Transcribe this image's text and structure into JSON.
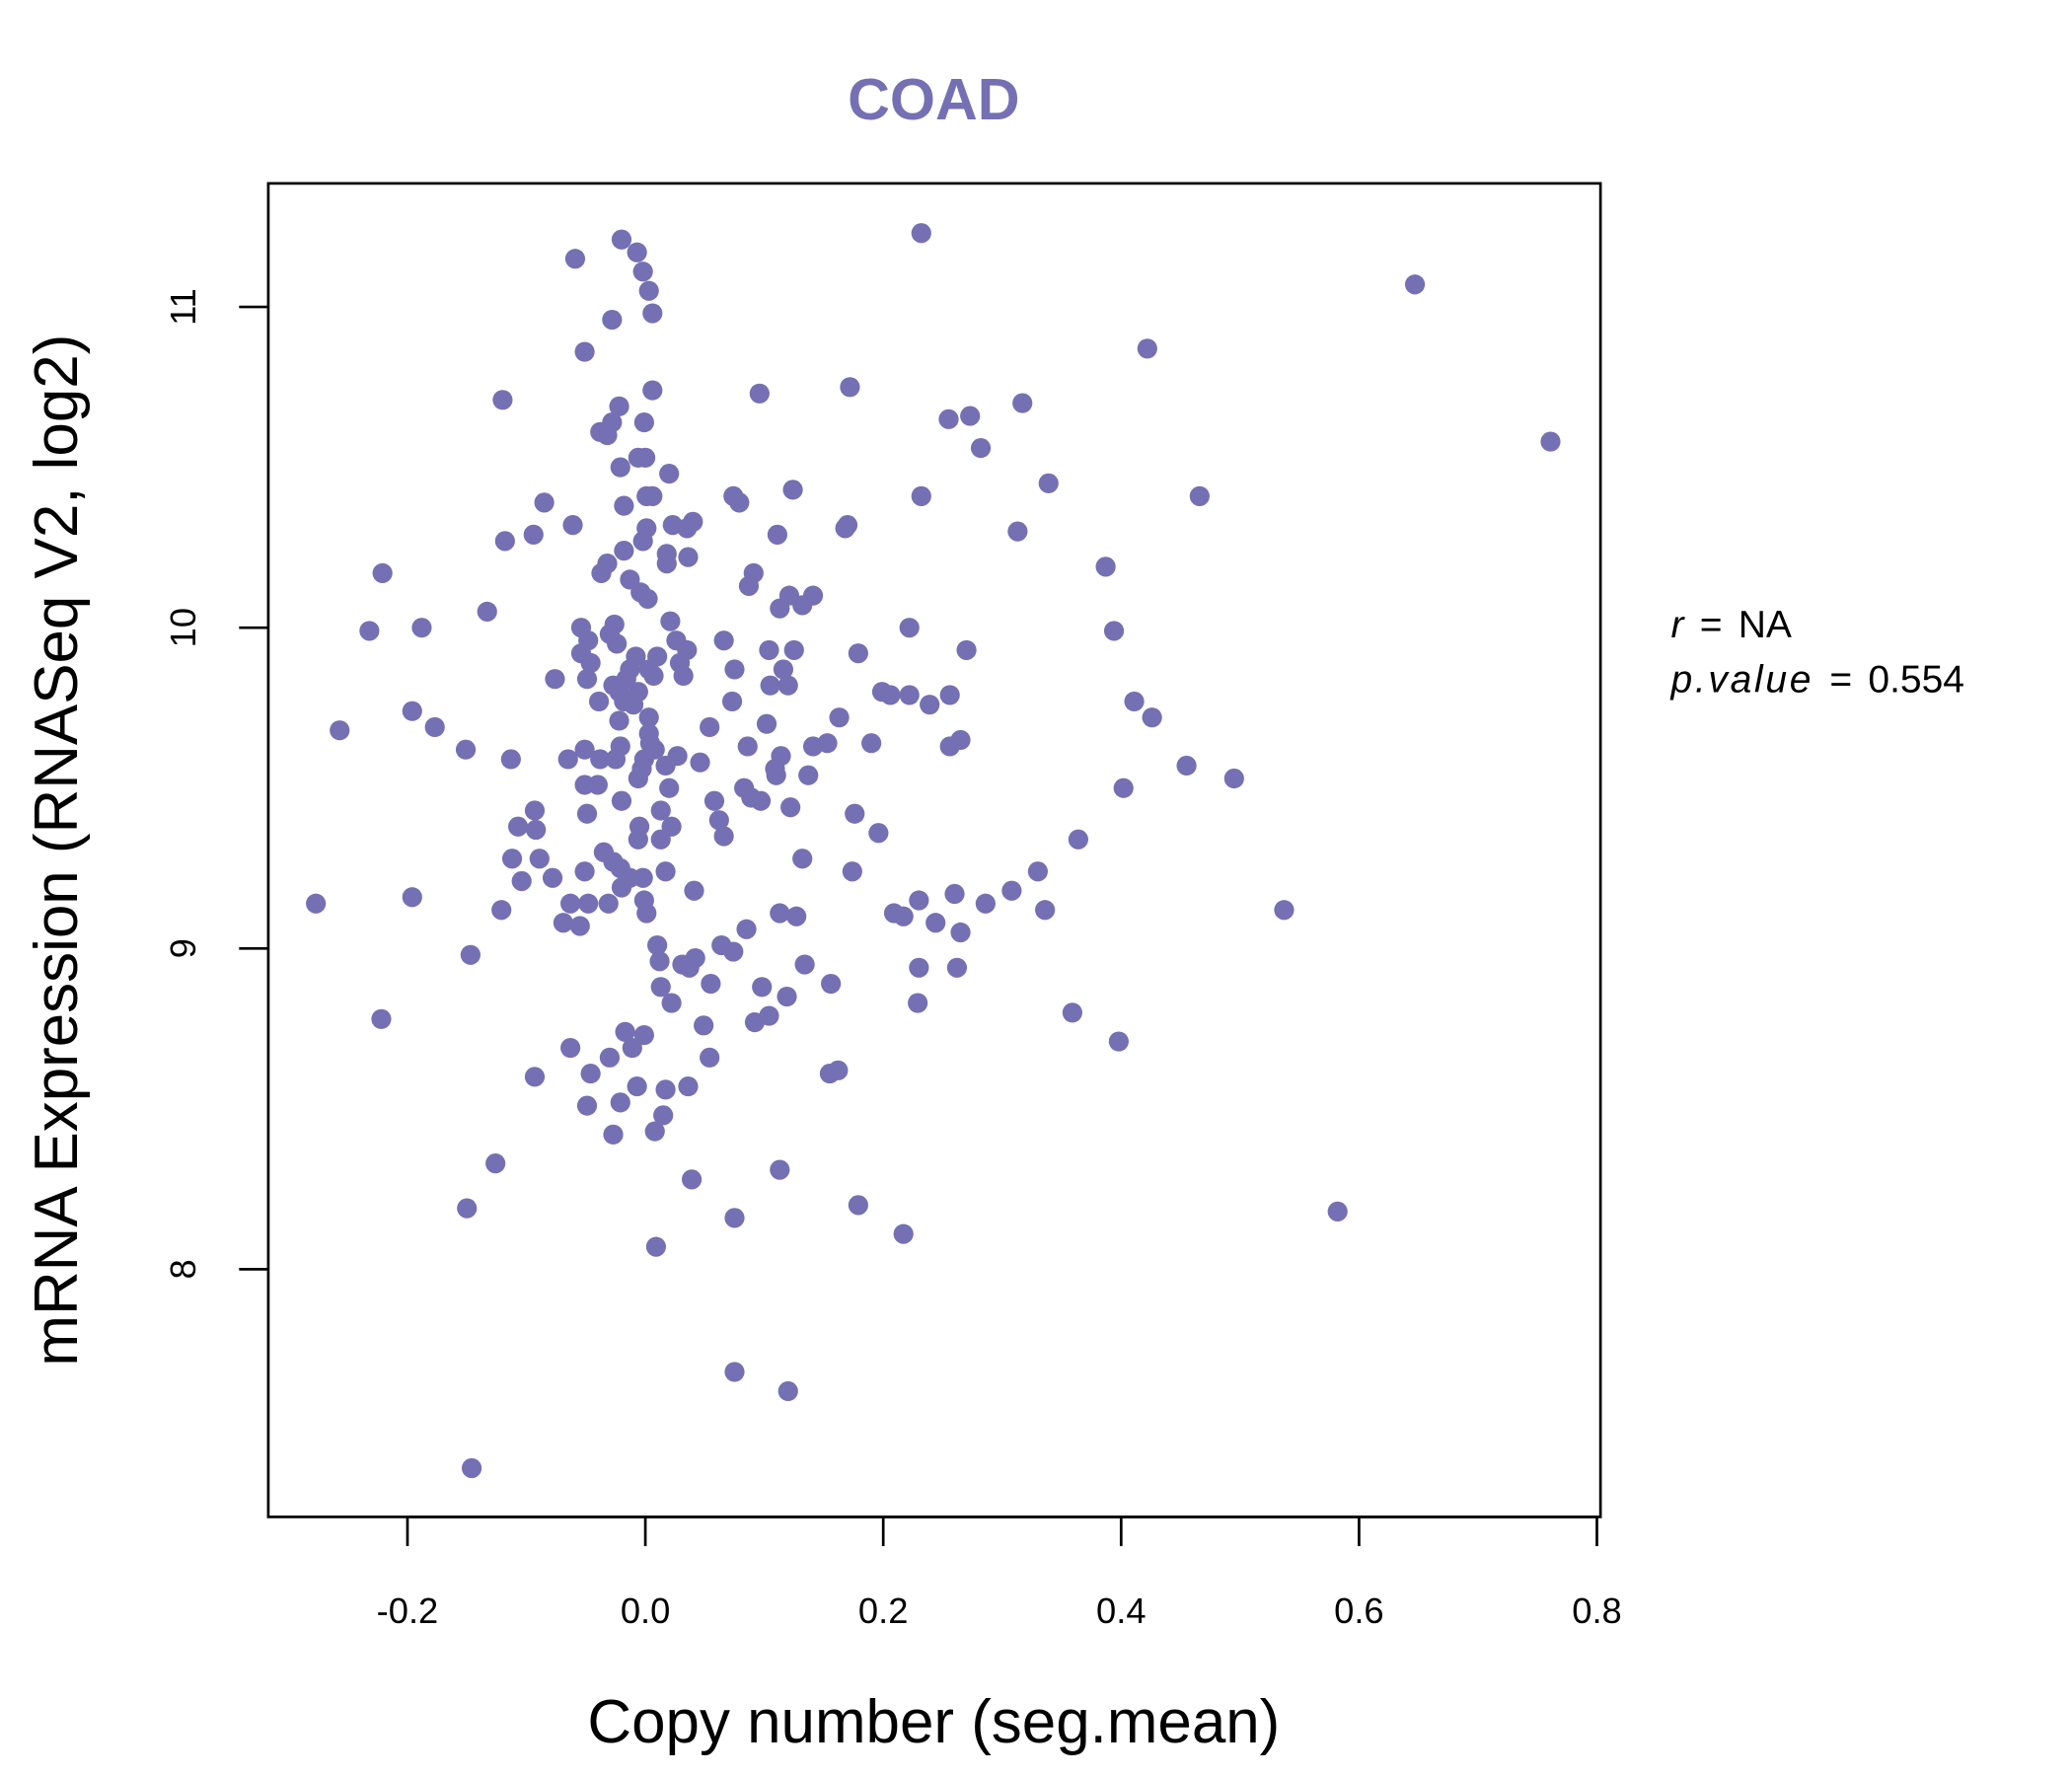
{
  "chart_data": {
    "type": "scatter",
    "title": "COAD",
    "xlabel": "Copy number (seg.mean)",
    "ylabel": "mRNA Expression (RNASeq V2, log2)",
    "xlim": [
      -0.317,
      0.803
    ],
    "ylim": [
      7.228,
      11.385
    ],
    "xticks": [
      -0.2,
      0.0,
      0.2,
      0.4,
      0.6,
      0.8
    ],
    "xtick_labels": [
      "-0.2",
      "0.0",
      "0.2",
      "0.4",
      "0.6",
      "0.8"
    ],
    "yticks": [
      8,
      9,
      10,
      11
    ],
    "ytick_labels": [
      "8",
      "9",
      "10",
      "11"
    ],
    "grid": false,
    "color": "#7570b3",
    "annotation": {
      "r_label": "r",
      "r_value": "NA",
      "p_label": "p.value",
      "p_value": "0.554",
      "eq": "="
    },
    "points": [
      [
        -0.02,
        11.21
      ],
      [
        0.232,
        11.23
      ],
      [
        -0.059,
        11.15
      ],
      [
        -0.007,
        11.17
      ],
      [
        -0.002,
        11.11
      ],
      [
        0.003,
        11.05
      ],
      [
        0.006,
        10.98
      ],
      [
        -0.028,
        10.96
      ],
      [
        0.647,
        11.07
      ],
      [
        -0.051,
        10.86
      ],
      [
        0.422,
        10.87
      ],
      [
        0.006,
        10.74
      ],
      [
        0.096,
        10.73
      ],
      [
        0.172,
        10.75
      ],
      [
        -0.12,
        10.71
      ],
      [
        -0.022,
        10.69
      ],
      [
        0.255,
        10.65
      ],
      [
        0.273,
        10.66
      ],
      [
        0.317,
        10.7
      ],
      [
        -0.001,
        10.64
      ],
      [
        -0.028,
        10.64
      ],
      [
        -0.038,
        10.61
      ],
      [
        -0.032,
        10.6
      ],
      [
        0.282,
        10.56
      ],
      [
        0.761,
        10.58
      ],
      [
        -0.006,
        10.53
      ],
      [
        0.0,
        10.53
      ],
      [
        -0.021,
        10.5
      ],
      [
        0.02,
        10.48
      ],
      [
        0.339,
        10.45
      ],
      [
        0.124,
        10.43
      ],
      [
        0.001,
        10.41
      ],
      [
        0.006,
        10.41
      ],
      [
        0.074,
        10.41
      ],
      [
        0.079,
        10.39
      ],
      [
        0.232,
        10.41
      ],
      [
        0.466,
        10.41
      ],
      [
        -0.085,
        10.39
      ],
      [
        -0.018,
        10.38
      ],
      [
        -0.061,
        10.32
      ],
      [
        0.001,
        10.31
      ],
      [
        0.023,
        10.32
      ],
      [
        0.04,
        10.33
      ],
      [
        0.168,
        10.31
      ],
      [
        0.17,
        10.32
      ],
      [
        0.313,
        10.3
      ],
      [
        0.035,
        10.31
      ],
      [
        -0.094,
        10.29
      ],
      [
        -0.118,
        10.27
      ],
      [
        0.111,
        10.29
      ],
      [
        -0.002,
        10.27
      ],
      [
        -0.018,
        10.24
      ],
      [
        0.018,
        10.23
      ],
      [
        0.018,
        10.2
      ],
      [
        0.036,
        10.22
      ],
      [
        -0.032,
        10.2
      ],
      [
        -0.037,
        10.17
      ],
      [
        -0.013,
        10.15
      ],
      [
        0.387,
        10.19
      ],
      [
        -0.221,
        10.17
      ],
      [
        0.091,
        10.17
      ],
      [
        0.087,
        10.13
      ],
      [
        0.121,
        10.1
      ],
      [
        0.141,
        10.1
      ],
      [
        -0.004,
        10.11
      ],
      [
        0.002,
        10.09
      ],
      [
        0.132,
        10.07
      ],
      [
        0.113,
        10.06
      ],
      [
        -0.133,
        10.05
      ],
      [
        -0.026,
        10.01
      ],
      [
        0.021,
        10.02
      ],
      [
        0.222,
        10.0
      ],
      [
        -0.054,
        10.0
      ],
      [
        -0.188,
        10.0
      ],
      [
        -0.232,
        9.99
      ],
      [
        0.394,
        9.99
      ],
      [
        -0.048,
        9.96
      ],
      [
        -0.03,
        9.98
      ],
      [
        -0.024,
        9.95
      ],
      [
        0.026,
        9.96
      ],
      [
        0.066,
        9.96
      ],
      [
        0.035,
        9.93
      ],
      [
        0.125,
        9.93
      ],
      [
        0.104,
        9.93
      ],
      [
        0.27,
        9.93
      ],
      [
        -0.054,
        9.92
      ],
      [
        -0.008,
        9.91
      ],
      [
        0.01,
        9.91
      ],
      [
        0.179,
        9.92
      ],
      [
        -0.046,
        9.89
      ],
      [
        0.029,
        9.89
      ],
      [
        -0.013,
        9.87
      ],
      [
        0.003,
        9.87
      ],
      [
        0.116,
        9.87
      ],
      [
        0.075,
        9.87
      ],
      [
        0.032,
        9.85
      ],
      [
        0.007,
        9.85
      ],
      [
        -0.016,
        9.84
      ],
      [
        -0.049,
        9.84
      ],
      [
        -0.076,
        9.84
      ],
      [
        -0.027,
        9.82
      ],
      [
        0.105,
        9.82
      ],
      [
        0.12,
        9.82
      ],
      [
        -0.022,
        9.8
      ],
      [
        -0.006,
        9.8
      ],
      [
        0.199,
        9.8
      ],
      [
        0.206,
        9.79
      ],
      [
        0.222,
        9.79
      ],
      [
        0.256,
        9.79
      ],
      [
        0.073,
        9.77
      ],
      [
        0.411,
        9.77
      ],
      [
        -0.039,
        9.77
      ],
      [
        -0.018,
        9.77
      ],
      [
        -0.01,
        9.76
      ],
      [
        0.239,
        9.76
      ],
      [
        0.426,
        9.72
      ],
      [
        -0.196,
        9.74
      ],
      [
        0.003,
        9.72
      ],
      [
        -0.022,
        9.71
      ],
      [
        0.163,
        9.72
      ],
      [
        0.102,
        9.7
      ],
      [
        -0.177,
        9.69
      ],
      [
        0.054,
        9.69
      ],
      [
        -0.257,
        9.68
      ],
      [
        0.003,
        9.67
      ],
      [
        0.265,
        9.65
      ],
      [
        0.004,
        9.64
      ],
      [
        0.153,
        9.64
      ],
      [
        0.19,
        9.64
      ],
      [
        -0.021,
        9.63
      ],
      [
        0.256,
        9.63
      ],
      [
        0.008,
        9.62
      ],
      [
        0.141,
        9.63
      ],
      [
        0.086,
        9.63
      ],
      [
        -0.151,
        9.62
      ],
      [
        -0.051,
        9.62
      ],
      [
        0.114,
        9.6
      ],
      [
        0.027,
        9.6
      ],
      [
        -0.001,
        9.59
      ],
      [
        -0.025,
        9.59
      ],
      [
        -0.065,
        9.59
      ],
      [
        -0.038,
        9.59
      ],
      [
        -0.113,
        9.59
      ],
      [
        0.455,
        9.57
      ],
      [
        0.017,
        9.57
      ],
      [
        0.046,
        9.58
      ],
      [
        0.109,
        9.56
      ],
      [
        -0.003,
        9.56
      ],
      [
        0.137,
        9.54
      ],
      [
        0.495,
        9.53
      ],
      [
        -0.006,
        9.53
      ],
      [
        0.11,
        9.54
      ],
      [
        -0.051,
        9.51
      ],
      [
        -0.04,
        9.51
      ],
      [
        0.02,
        9.5
      ],
      [
        0.083,
        9.5
      ],
      [
        0.402,
        9.5
      ],
      [
        0.089,
        9.47
      ],
      [
        0.097,
        9.46
      ],
      [
        -0.02,
        9.46
      ],
      [
        0.058,
        9.46
      ],
      [
        0.122,
        9.44
      ],
      [
        -0.093,
        9.43
      ],
      [
        -0.049,
        9.42
      ],
      [
        0.013,
        9.43
      ],
      [
        0.176,
        9.42
      ],
      [
        0.062,
        9.4
      ],
      [
        -0.005,
        9.38
      ],
      [
        0.022,
        9.38
      ],
      [
        -0.107,
        9.38
      ],
      [
        -0.092,
        9.37
      ],
      [
        0.196,
        9.36
      ],
      [
        0.066,
        9.35
      ],
      [
        0.364,
        9.34
      ],
      [
        -0.006,
        9.34
      ],
      [
        0.013,
        9.34
      ],
      [
        -0.035,
        9.3
      ],
      [
        0.132,
        9.28
      ],
      [
        -0.112,
        9.28
      ],
      [
        -0.089,
        9.28
      ],
      [
        -0.027,
        9.27
      ],
      [
        -0.021,
        9.25
      ],
      [
        -0.051,
        9.24
      ],
      [
        0.017,
        9.24
      ],
      [
        0.174,
        9.24
      ],
      [
        0.33,
        9.24
      ],
      [
        -0.078,
        9.22
      ],
      [
        -0.013,
        9.22
      ],
      [
        -0.002,
        9.22
      ],
      [
        -0.104,
        9.21
      ],
      [
        -0.02,
        9.19
      ],
      [
        0.041,
        9.18
      ],
      [
        0.26,
        9.17
      ],
      [
        0.308,
        9.18
      ],
      [
        -0.196,
        9.16
      ],
      [
        -0.001,
        9.15
      ],
      [
        0.23,
        9.15
      ],
      [
        -0.277,
        9.14
      ],
      [
        -0.048,
        9.14
      ],
      [
        -0.031,
        9.14
      ],
      [
        -0.063,
        9.14
      ],
      [
        0.286,
        9.14
      ],
      [
        0.336,
        9.12
      ],
      [
        0.537,
        9.12
      ],
      [
        -0.121,
        9.12
      ],
      [
        0.001,
        9.11
      ],
      [
        0.209,
        9.11
      ],
      [
        0.217,
        9.1
      ],
      [
        0.113,
        9.11
      ],
      [
        0.127,
        9.1
      ],
      [
        -0.069,
        9.08
      ],
      [
        0.244,
        9.08
      ],
      [
        -0.055,
        9.07
      ],
      [
        0.085,
        9.06
      ],
      [
        0.265,
        9.05
      ],
      [
        0.064,
        9.01
      ],
      [
        0.01,
        9.01
      ],
      [
        0.074,
        8.99
      ],
      [
        -0.147,
        8.98
      ],
      [
        0.012,
        8.96
      ],
      [
        0.134,
        8.95
      ],
      [
        0.262,
        8.94
      ],
      [
        0.042,
        8.97
      ],
      [
        0.031,
        8.95
      ],
      [
        0.23,
        8.94
      ],
      [
        0.037,
        8.94
      ],
      [
        0.013,
        8.88
      ],
      [
        0.055,
        8.89
      ],
      [
        0.098,
        8.88
      ],
      [
        0.156,
        8.89
      ],
      [
        0.119,
        8.85
      ],
      [
        0.022,
        8.83
      ],
      [
        0.229,
        8.83
      ],
      [
        0.359,
        8.8
      ],
      [
        -0.222,
        8.78
      ],
      [
        0.104,
        8.79
      ],
      [
        0.092,
        8.77
      ],
      [
        0.049,
        8.76
      ],
      [
        -0.017,
        8.74
      ],
      [
        -0.001,
        8.73
      ],
      [
        0.398,
        8.71
      ],
      [
        -0.011,
        8.69
      ],
      [
        -0.063,
        8.69
      ],
      [
        -0.03,
        8.66
      ],
      [
        0.054,
        8.66
      ],
      [
        0.162,
        8.62
      ],
      [
        0.155,
        8.61
      ],
      [
        -0.046,
        8.61
      ],
      [
        -0.093,
        8.6
      ],
      [
        -0.007,
        8.57
      ],
      [
        0.036,
        8.57
      ],
      [
        0.017,
        8.56
      ],
      [
        -0.049,
        8.51
      ],
      [
        -0.021,
        8.52
      ],
      [
        0.015,
        8.48
      ],
      [
        0.008,
        8.43
      ],
      [
        -0.027,
        8.42
      ],
      [
        -0.126,
        8.33
      ],
      [
        0.039,
        8.28
      ],
      [
        0.113,
        8.31
      ],
      [
        -0.15,
        8.19
      ],
      [
        0.179,
        8.2
      ],
      [
        0.582,
        8.18
      ],
      [
        0.075,
        8.16
      ],
      [
        0.217,
        8.11
      ],
      [
        0.009,
        8.07
      ],
      [
        0.075,
        7.68
      ],
      [
        0.12,
        7.62
      ],
      [
        -0.146,
        7.38
      ]
    ]
  }
}
